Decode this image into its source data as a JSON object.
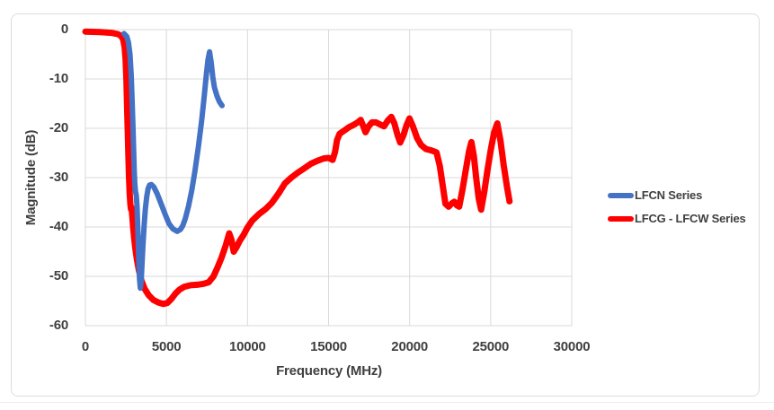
{
  "chart_data": {
    "type": "line",
    "title": "",
    "xlabel": "Frequency (MHz)",
    "ylabel": "Magnitude (dB)",
    "xlim": [
      0,
      30000
    ],
    "ylim": [
      -60,
      0
    ],
    "x_ticks": [
      0,
      5000,
      10000,
      15000,
      20000,
      25000,
      30000
    ],
    "y_ticks": [
      0,
      -10,
      -20,
      -30,
      -40,
      -50,
      -60
    ],
    "grid": true,
    "grid_color": "#d9d9d9",
    "legend_position": "right-outside",
    "series": [
      {
        "name": "LFCN Series",
        "color": "#4472C4",
        "points": [
          [
            2380,
            -0.8
          ],
          [
            2550,
            -1.4
          ],
          [
            2650,
            -2.5
          ],
          [
            2750,
            -5
          ],
          [
            2820,
            -9
          ],
          [
            2880,
            -14
          ],
          [
            2930,
            -19
          ],
          [
            2970,
            -24
          ],
          [
            3010,
            -28.5
          ],
          [
            3050,
            -31.3
          ],
          [
            3090,
            -32.8
          ],
          [
            3140,
            -33.6
          ],
          [
            3190,
            -36
          ],
          [
            3240,
            -41
          ],
          [
            3290,
            -46.5
          ],
          [
            3340,
            -50.5
          ],
          [
            3390,
            -52.4
          ],
          [
            3440,
            -51.2
          ],
          [
            3490,
            -47.8
          ],
          [
            3550,
            -43.8
          ],
          [
            3620,
            -39.8
          ],
          [
            3700,
            -36.3
          ],
          [
            3780,
            -33.9
          ],
          [
            3870,
            -32.2
          ],
          [
            3960,
            -31.5
          ],
          [
            4070,
            -31.4
          ],
          [
            4220,
            -31.9
          ],
          [
            4420,
            -33.2
          ],
          [
            4660,
            -35.2
          ],
          [
            4900,
            -37.3
          ],
          [
            5150,
            -39.3
          ],
          [
            5400,
            -40.4
          ],
          [
            5660,
            -40.9
          ],
          [
            5860,
            -40.5
          ],
          [
            6010,
            -39.7
          ],
          [
            6160,
            -38.3
          ],
          [
            6360,
            -35.8
          ],
          [
            6560,
            -32.6
          ],
          [
            6760,
            -28.6
          ],
          [
            6960,
            -24
          ],
          [
            7160,
            -18.8
          ],
          [
            7310,
            -14.2
          ],
          [
            7460,
            -9.2
          ],
          [
            7560,
            -6.2
          ],
          [
            7660,
            -4.5
          ],
          [
            7760,
            -6.6
          ],
          [
            7860,
            -9.6
          ],
          [
            7960,
            -11.7
          ],
          [
            8110,
            -13.4
          ],
          [
            8260,
            -14.6
          ],
          [
            8430,
            -15.4
          ]
        ]
      },
      {
        "name": "LFCG - LFCW Series",
        "color": "#FF0000",
        "points": [
          [
            0,
            -0.4
          ],
          [
            900,
            -0.5
          ],
          [
            1600,
            -0.65
          ],
          [
            2000,
            -0.9
          ],
          [
            2200,
            -1.3
          ],
          [
            2330,
            -2
          ],
          [
            2420,
            -3.5
          ],
          [
            2480,
            -6
          ],
          [
            2530,
            -10
          ],
          [
            2570,
            -15
          ],
          [
            2610,
            -20.5
          ],
          [
            2650,
            -25.5
          ],
          [
            2690,
            -29.8
          ],
          [
            2730,
            -33
          ],
          [
            2770,
            -35.3
          ],
          [
            2810,
            -36.4
          ],
          [
            2850,
            -36.1
          ],
          [
            2890,
            -37.6
          ],
          [
            2940,
            -39.8
          ],
          [
            3000,
            -42
          ],
          [
            3080,
            -44.3
          ],
          [
            3180,
            -46.6
          ],
          [
            3300,
            -48.8
          ],
          [
            3450,
            -50.8
          ],
          [
            3650,
            -52.5
          ],
          [
            3900,
            -53.8
          ],
          [
            4200,
            -54.8
          ],
          [
            4500,
            -55.3
          ],
          [
            4800,
            -55.6
          ],
          [
            5050,
            -55.4
          ],
          [
            5300,
            -54.6
          ],
          [
            5550,
            -53.5
          ],
          [
            5800,
            -52.7
          ],
          [
            6100,
            -52.1
          ],
          [
            6500,
            -51.8
          ],
          [
            6900,
            -51.7
          ],
          [
            7300,
            -51.5
          ],
          [
            7600,
            -51.2
          ],
          [
            7900,
            -50
          ],
          [
            8150,
            -48.2
          ],
          [
            8400,
            -46.2
          ],
          [
            8650,
            -43.8
          ],
          [
            8870,
            -41.3
          ],
          [
            9010,
            -42.6
          ],
          [
            9150,
            -45
          ],
          [
            9320,
            -44.1
          ],
          [
            9520,
            -42.8
          ],
          [
            9760,
            -41.6
          ],
          [
            10000,
            -40.1
          ],
          [
            10300,
            -38.7
          ],
          [
            10700,
            -37.4
          ],
          [
            11100,
            -36.4
          ],
          [
            11500,
            -35.1
          ],
          [
            11900,
            -33.3
          ],
          [
            12300,
            -31.2
          ],
          [
            12700,
            -30
          ],
          [
            13100,
            -29
          ],
          [
            13500,
            -28.1
          ],
          [
            13900,
            -27.2
          ],
          [
            14300,
            -26.6
          ],
          [
            14700,
            -26.1
          ],
          [
            15000,
            -26
          ],
          [
            15250,
            -26.4
          ],
          [
            15400,
            -24.8
          ],
          [
            15520,
            -22.4
          ],
          [
            15680,
            -21.1
          ],
          [
            15950,
            -20.5
          ],
          [
            16250,
            -19.8
          ],
          [
            16550,
            -19.3
          ],
          [
            16800,
            -18.8
          ],
          [
            16980,
            -18.3
          ],
          [
            17120,
            -19.4
          ],
          [
            17280,
            -20.8
          ],
          [
            17470,
            -19.6
          ],
          [
            17680,
            -18.8
          ],
          [
            17920,
            -18.8
          ],
          [
            18160,
            -19.2
          ],
          [
            18420,
            -19.6
          ],
          [
            18660,
            -18.4
          ],
          [
            18870,
            -17.7
          ],
          [
            19060,
            -19
          ],
          [
            19260,
            -21.4
          ],
          [
            19420,
            -22.9
          ],
          [
            19620,
            -21.4
          ],
          [
            19820,
            -19.3
          ],
          [
            19990,
            -18
          ],
          [
            20210,
            -19.7
          ],
          [
            20460,
            -22
          ],
          [
            20710,
            -23.4
          ],
          [
            21010,
            -24.2
          ],
          [
            21360,
            -24.5
          ],
          [
            21660,
            -24.9
          ],
          [
            21860,
            -27.6
          ],
          [
            22060,
            -32
          ],
          [
            22210,
            -35.3
          ],
          [
            22410,
            -35.9
          ],
          [
            22610,
            -35.2
          ],
          [
            22760,
            -34.9
          ],
          [
            22910,
            -35.6
          ],
          [
            23060,
            -35.9
          ],
          [
            23260,
            -32.4
          ],
          [
            23460,
            -28.5
          ],
          [
            23660,
            -24.7
          ],
          [
            23810,
            -22.8
          ],
          [
            23960,
            -25.6
          ],
          [
            24110,
            -30.2
          ],
          [
            24260,
            -34.2
          ],
          [
            24410,
            -36.5
          ],
          [
            24610,
            -32.8
          ],
          [
            24810,
            -28.3
          ],
          [
            25010,
            -24.3
          ],
          [
            25210,
            -20.9
          ],
          [
            25410,
            -19
          ],
          [
            25610,
            -22.6
          ],
          [
            25810,
            -27.6
          ],
          [
            26010,
            -31.9
          ],
          [
            26160,
            -34.8
          ]
        ]
      }
    ]
  }
}
